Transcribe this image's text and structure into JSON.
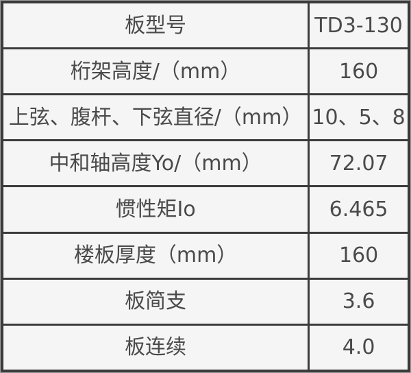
{
  "table": {
    "name": "slab-specification-table",
    "columns": [
      "label",
      "value"
    ],
    "rows": [
      {
        "label": "板型号",
        "value": "TD3-130"
      },
      {
        "label": "桁架高度/（mm）",
        "value": "160"
      },
      {
        "label": "上弦、腹杆、下弦直径/（mm）",
        "value": "10、5、8"
      },
      {
        "label": "中和轴高度Yo/（mm）",
        "value": "72.07"
      },
      {
        "label": "惯性矩Io",
        "value": "6.465"
      },
      {
        "label": "楼板厚度（mm）",
        "value": "160"
      },
      {
        "label": "板简支",
        "value": "3.6"
      },
      {
        "label": "板连续",
        "value": "4.0"
      }
    ]
  },
  "colors": {
    "border": "#3b3b3b",
    "outer_edge": "#9c9c9c",
    "cell_background": "#f5f5f5",
    "text": "#4a4a4a"
  }
}
